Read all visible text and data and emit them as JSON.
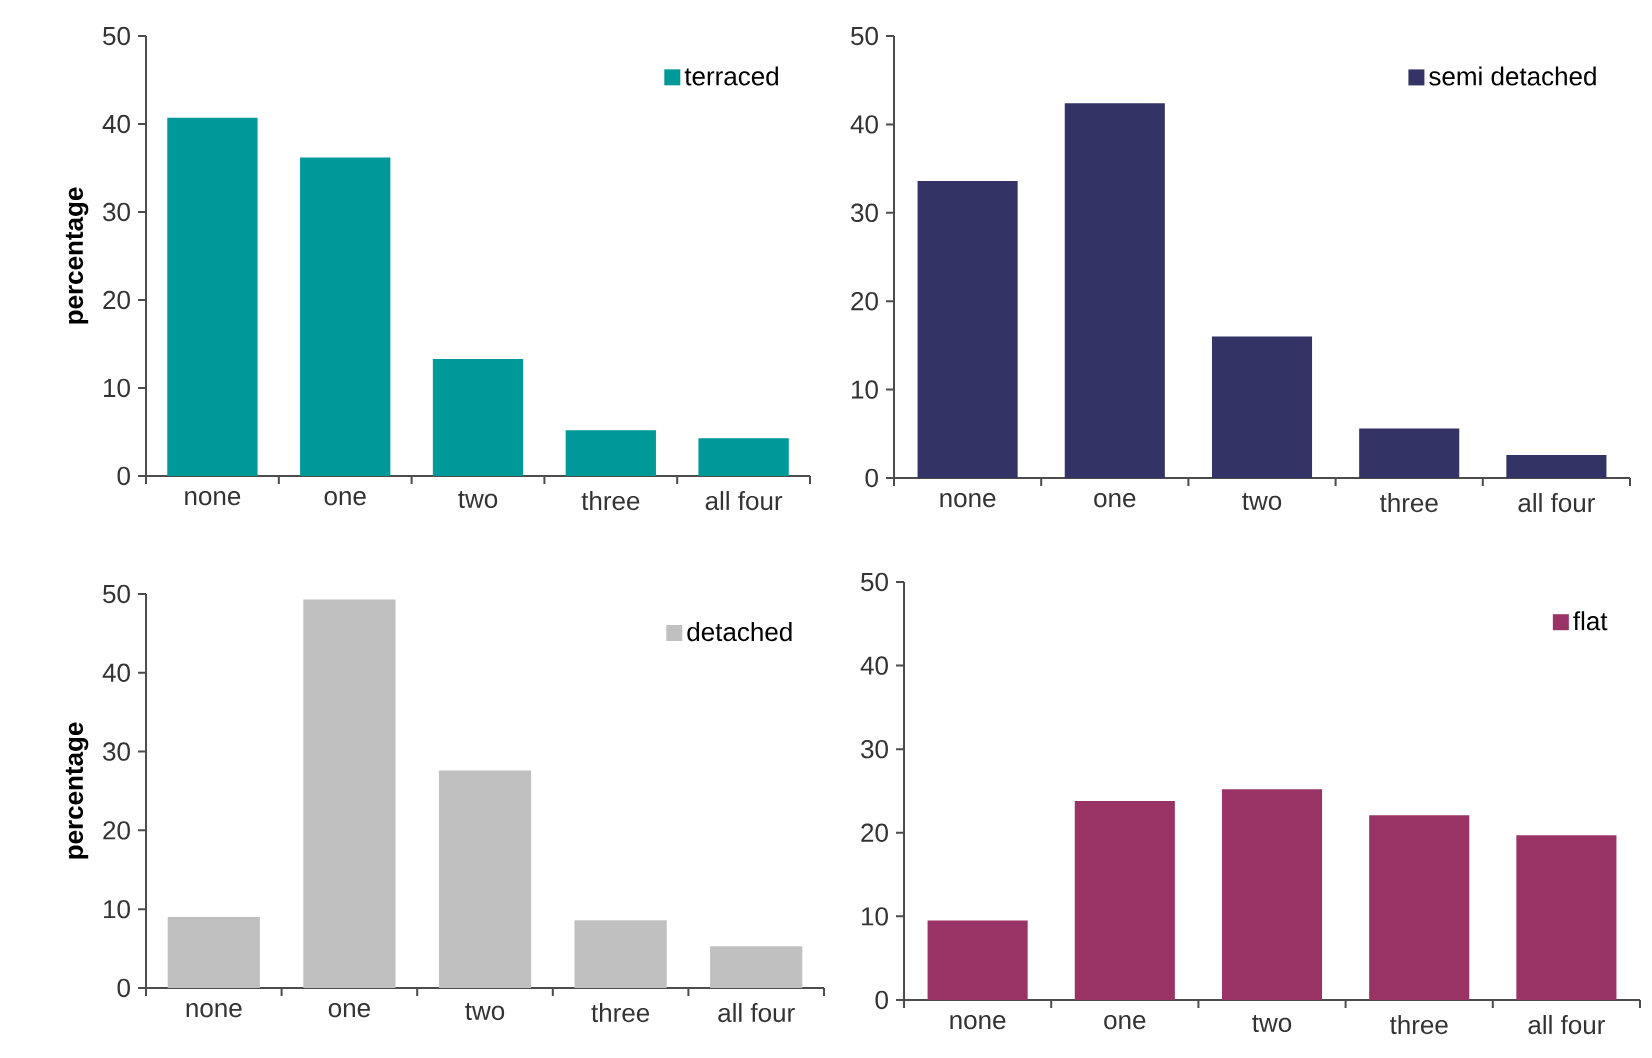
{
  "chart_data": [
    {
      "type": "bar",
      "ylabel": "percentage",
      "categories": [
        "none",
        "one",
        "two",
        "three",
        "all four"
      ],
      "ylim": [
        0,
        50
      ],
      "yticks": [
        0,
        10,
        20,
        30,
        40,
        50
      ],
      "legend": "top right",
      "series": [
        {
          "name": "terraced",
          "color": "#009999",
          "values": [
            40.7,
            36.2,
            13.3,
            5.2,
            4.3
          ]
        }
      ]
    },
    {
      "type": "bar",
      "categories": [
        "none",
        "one",
        "two",
        "three",
        "all four"
      ],
      "ylim": [
        0,
        50
      ],
      "yticks": [
        0,
        10,
        20,
        30,
        40,
        50
      ],
      "legend": "top right",
      "series": [
        {
          "name": "semi detached",
          "color": "#333366",
          "values": [
            33.6,
            42.4,
            16.0,
            5.6,
            2.6
          ]
        }
      ]
    },
    {
      "type": "bar",
      "ylabel": "percentage",
      "categories": [
        "none",
        "one",
        "two",
        "three",
        "all four"
      ],
      "ylim": [
        0,
        50
      ],
      "yticks": [
        0,
        10,
        20,
        30,
        40,
        50
      ],
      "legend": "top right",
      "series": [
        {
          "name": "detached",
          "color": "#c0c0c0",
          "values": [
            9.0,
            49.3,
            27.6,
            8.6,
            5.3
          ]
        }
      ]
    },
    {
      "type": "bar",
      "categories": [
        "none",
        "one",
        "two",
        "three",
        "all four"
      ],
      "ylim": [
        0,
        50
      ],
      "yticks": [
        0,
        10,
        20,
        30,
        40,
        50
      ],
      "legend": "top right",
      "series": [
        {
          "name": "flat",
          "color": "#993366",
          "values": [
            9.5,
            23.8,
            25.2,
            22.1,
            19.7
          ]
        }
      ]
    }
  ]
}
